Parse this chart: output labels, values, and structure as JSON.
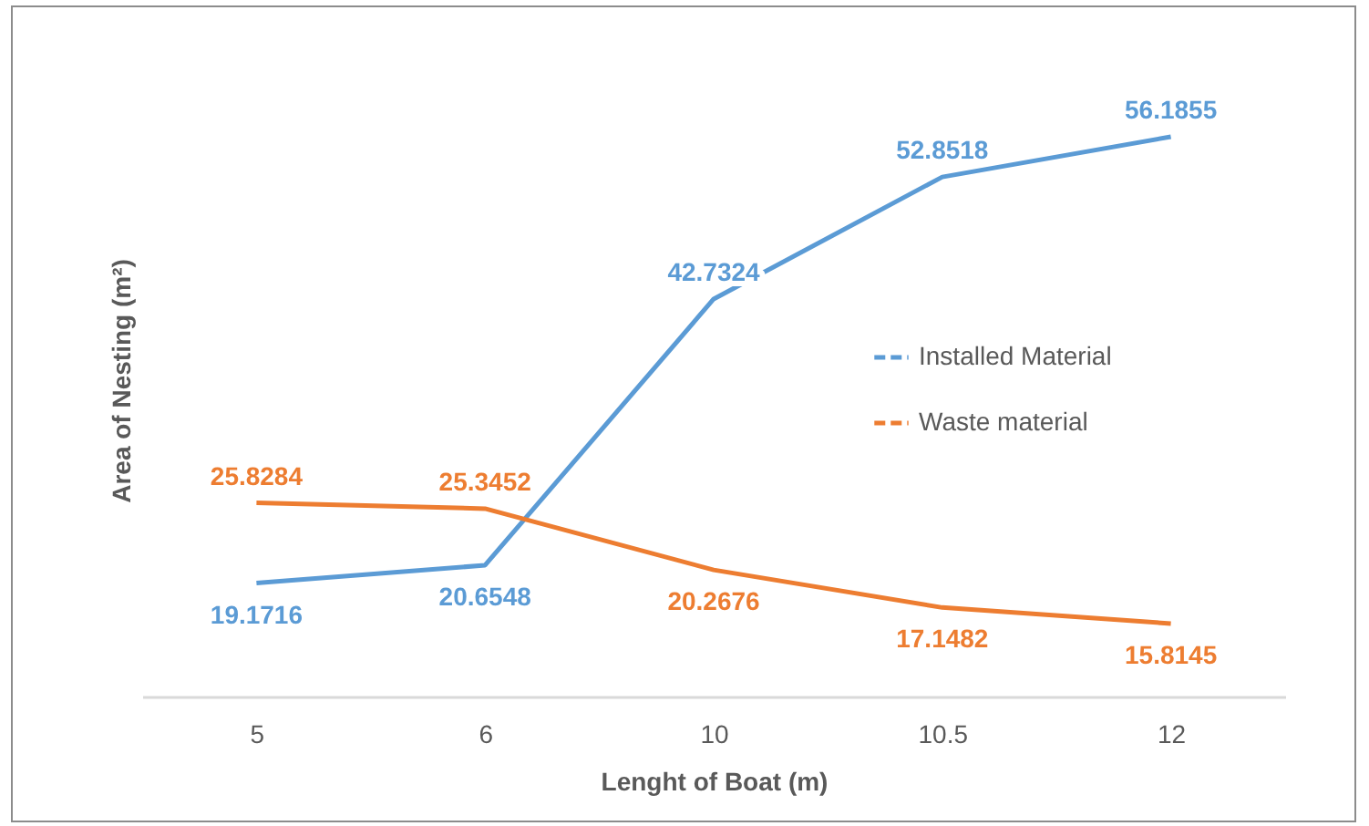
{
  "chart_data": {
    "type": "line",
    "xlabel": "Lenght of Boat (m)",
    "ylabel": "Area of Nesting (m²)",
    "categories": [
      "5",
      "6",
      "10",
      "10.5",
      "12"
    ],
    "series": [
      {
        "name": "Installed Material",
        "color": "#5b9bd5",
        "values": [
          19.1716,
          20.6548,
          42.7324,
          52.8518,
          56.1855
        ]
      },
      {
        "name": "Waste material",
        "color": "#ed7d31",
        "values": [
          25.8284,
          25.3452,
          20.2676,
          17.1482,
          15.8145
        ]
      }
    ],
    "data_labels": true,
    "legend": "right",
    "grid": false,
    "line_style": "solid"
  }
}
